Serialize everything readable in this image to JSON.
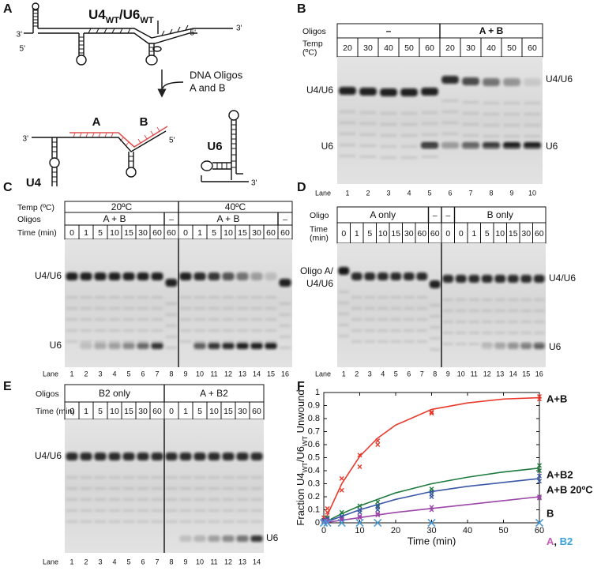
{
  "panel_a": {
    "letter": "A",
    "title": [
      "U4",
      "WT",
      "/U6",
      "WT"
    ],
    "top_ends": [
      "3'",
      "5'",
      "5'",
      "3'"
    ],
    "arrow_label": [
      "DNA Oligos",
      "A and B"
    ],
    "oligo_a": "A",
    "oligo_b": "B",
    "bottom_ends": [
      "3'",
      "5'"
    ],
    "u4": "U4",
    "u6": "U6",
    "u6_end": "3'"
  },
  "panel_b": {
    "letter": "B",
    "rows": [
      {
        "label": [
          "Oligos"
        ],
        "cells": [
          "–",
          "A + B"
        ]
      },
      {
        "label": [
          "Temp",
          "(ºC)"
        ],
        "cells": [
          20,
          30,
          40,
          50,
          60,
          20,
          30,
          40,
          50,
          60
        ]
      }
    ],
    "lane_label": "Lane",
    "lanes": [
      1,
      2,
      3,
      4,
      5,
      6,
      7,
      8,
      9,
      10
    ],
    "left_bands": [
      [
        "U4/U6"
      ],
      [
        "U6"
      ]
    ],
    "right_bands": [
      [
        "U4/U6"
      ],
      [
        "U6"
      ]
    ]
  },
  "panel_c": {
    "letter": "C",
    "rows": [
      {
        "label": [
          "Temp (ºC)"
        ],
        "cells": [
          "20ºC",
          "40ºC"
        ]
      },
      {
        "label": [
          "Oligos"
        ],
        "cells": [
          {
            "text": "A + B",
            "color": "#3a57a7"
          },
          "–",
          {
            "text": "A + B",
            "color": "#e8392b"
          },
          "–"
        ]
      },
      {
        "label": [
          "Time (min)"
        ],
        "cells": [
          0,
          1,
          5,
          10,
          15,
          30,
          60,
          60,
          0,
          1,
          5,
          10,
          15,
          30,
          60,
          60
        ]
      }
    ],
    "lane_label": "Lane",
    "lanes": [
      1,
      2,
      3,
      4,
      5,
      6,
      7,
      8,
      9,
      10,
      11,
      12,
      13,
      14,
      15,
      16
    ],
    "left_bands": [
      [
        "U4/U6"
      ],
      [
        "U6"
      ]
    ],
    "right_bands": []
  },
  "panel_d": {
    "letter": "D",
    "rows": [
      {
        "label": [
          "Oligo"
        ],
        "cells": [
          {
            "text": "A only",
            "color": "#c35bb5"
          },
          "–",
          "–",
          {
            "text": "B only",
            "color": "#9b46a8"
          }
        ]
      },
      {
        "label": [
          "Time",
          "(min)"
        ],
        "cells": [
          0,
          1,
          5,
          10,
          15,
          30,
          60,
          60,
          0,
          0,
          1,
          5,
          10,
          15,
          30,
          60
        ]
      }
    ],
    "lane_label": "Lane",
    "lanes": [
      1,
      2,
      3,
      4,
      5,
      6,
      7,
      8,
      9,
      10,
      11,
      12,
      13,
      14,
      15,
      16
    ],
    "left_bands": [
      [
        "Oligo A/",
        "U4/U6"
      ]
    ],
    "right_bands": [
      [
        "U4/U6"
      ],
      [
        "U6"
      ]
    ]
  },
  "panel_e": {
    "letter": "E",
    "rows": [
      {
        "label": [
          "Oligos"
        ],
        "cells": [
          {
            "text": "B2 only",
            "color": "#3aa0d8"
          },
          {
            "text": "A + B2",
            "color": "#27a04a"
          }
        ]
      },
      {
        "label": [
          "Time (min)"
        ],
        "cells": [
          0,
          1,
          5,
          10,
          15,
          30,
          60,
          0,
          1,
          5,
          10,
          15,
          30,
          60
        ]
      }
    ],
    "lane_label": "Lane",
    "lanes": [
      1,
      2,
      3,
      4,
      5,
      6,
      7,
      8,
      9,
      10,
      11,
      12,
      13,
      14
    ],
    "left_bands": [
      [
        "U4/U6"
      ]
    ],
    "right_bands": [
      [
        "U6"
      ]
    ]
  },
  "panel_f": {
    "letter": "F",
    "type": "scatter",
    "x_label": "Time (min)",
    "y_label": [
      "Fraction U4",
      "WT",
      "/U6",
      "WT",
      " Unwound"
    ],
    "xlim": [
      0,
      60
    ],
    "ylim": [
      0,
      1
    ],
    "xticks": [
      0,
      10,
      20,
      30,
      40,
      50,
      60
    ],
    "yticks": [
      0,
      0.1,
      0.2,
      0.3,
      0.4,
      0.5,
      0.6,
      0.7,
      0.8,
      0.9,
      1
    ],
    "name_separator": ", ",
    "series": [
      {
        "name": "A+B",
        "color": "#e8392b",
        "x": [
          0,
          0,
          1,
          1,
          5,
          5,
          10,
          10,
          15,
          15,
          30,
          30,
          60,
          60
        ],
        "values": [
          0.02,
          0.04,
          0.08,
          0.11,
          0.25,
          0.34,
          0.43,
          0.52,
          0.6,
          0.63,
          0.84,
          0.85,
          0.95,
          0.97
        ],
        "fit_x": [
          0,
          5,
          10,
          15,
          20,
          30,
          40,
          50,
          60
        ],
        "fit_values": [
          0,
          0.3,
          0.51,
          0.65,
          0.75,
          0.87,
          0.92,
          0.95,
          0.96
        ]
      },
      {
        "name": "A+B2",
        "color": "#1e7a3c",
        "x": [
          0,
          0,
          1,
          1,
          5,
          5,
          10,
          10,
          15,
          15,
          30,
          30,
          60,
          60
        ],
        "values": [
          0.01,
          0.02,
          0.03,
          0.04,
          0.05,
          0.08,
          0.1,
          0.13,
          0.13,
          0.16,
          0.24,
          0.26,
          0.4,
          0.44
        ],
        "fit_x": [
          0,
          5,
          10,
          15,
          20,
          30,
          40,
          50,
          60
        ],
        "fit_values": [
          0,
          0.07,
          0.13,
          0.18,
          0.23,
          0.3,
          0.35,
          0.39,
          0.42
        ]
      },
      {
        "name": "A+B 20ºC",
        "color": "#3a57a7",
        "x": [
          0,
          0,
          1,
          1,
          5,
          5,
          10,
          10,
          15,
          15,
          30,
          30,
          60,
          60
        ],
        "values": [
          0.01,
          0.02,
          0.02,
          0.03,
          0.04,
          0.05,
          0.08,
          0.1,
          0.1,
          0.12,
          0.2,
          0.22,
          0.32,
          0.36
        ],
        "fit_x": [
          0,
          5,
          10,
          15,
          20,
          30,
          40,
          50,
          60
        ],
        "fit_values": [
          0,
          0.05,
          0.1,
          0.14,
          0.18,
          0.24,
          0.28,
          0.31,
          0.34
        ]
      },
      {
        "name": "B",
        "color": "#9b46a8",
        "x": [
          0,
          0,
          1,
          1,
          5,
          5,
          10,
          10,
          15,
          15,
          30,
          30,
          60,
          60
        ],
        "values": [
          0,
          0.01,
          0.01,
          0.02,
          0.02,
          0.03,
          0.04,
          0.05,
          0.06,
          0.07,
          0.1,
          0.12,
          0.19,
          0.2
        ],
        "fit_x": [
          0,
          5,
          10,
          15,
          20,
          30,
          40,
          50,
          60
        ],
        "fit_values": [
          0,
          0.02,
          0.04,
          0.06,
          0.08,
          0.11,
          0.14,
          0.17,
          0.2
        ]
      },
      {
        "name": "A",
        "color": "#c35bb5",
        "x": [
          0,
          1,
          5,
          10,
          15,
          30,
          60
        ],
        "values": [
          0,
          0,
          0,
          0,
          0,
          0,
          0
        ]
      },
      {
        "name": "B2",
        "color": "#3aa0d8",
        "x": [
          0,
          1,
          5,
          10,
          15,
          30,
          60
        ],
        "values": [
          0,
          0,
          0,
          0,
          0,
          0,
          0
        ]
      }
    ]
  }
}
